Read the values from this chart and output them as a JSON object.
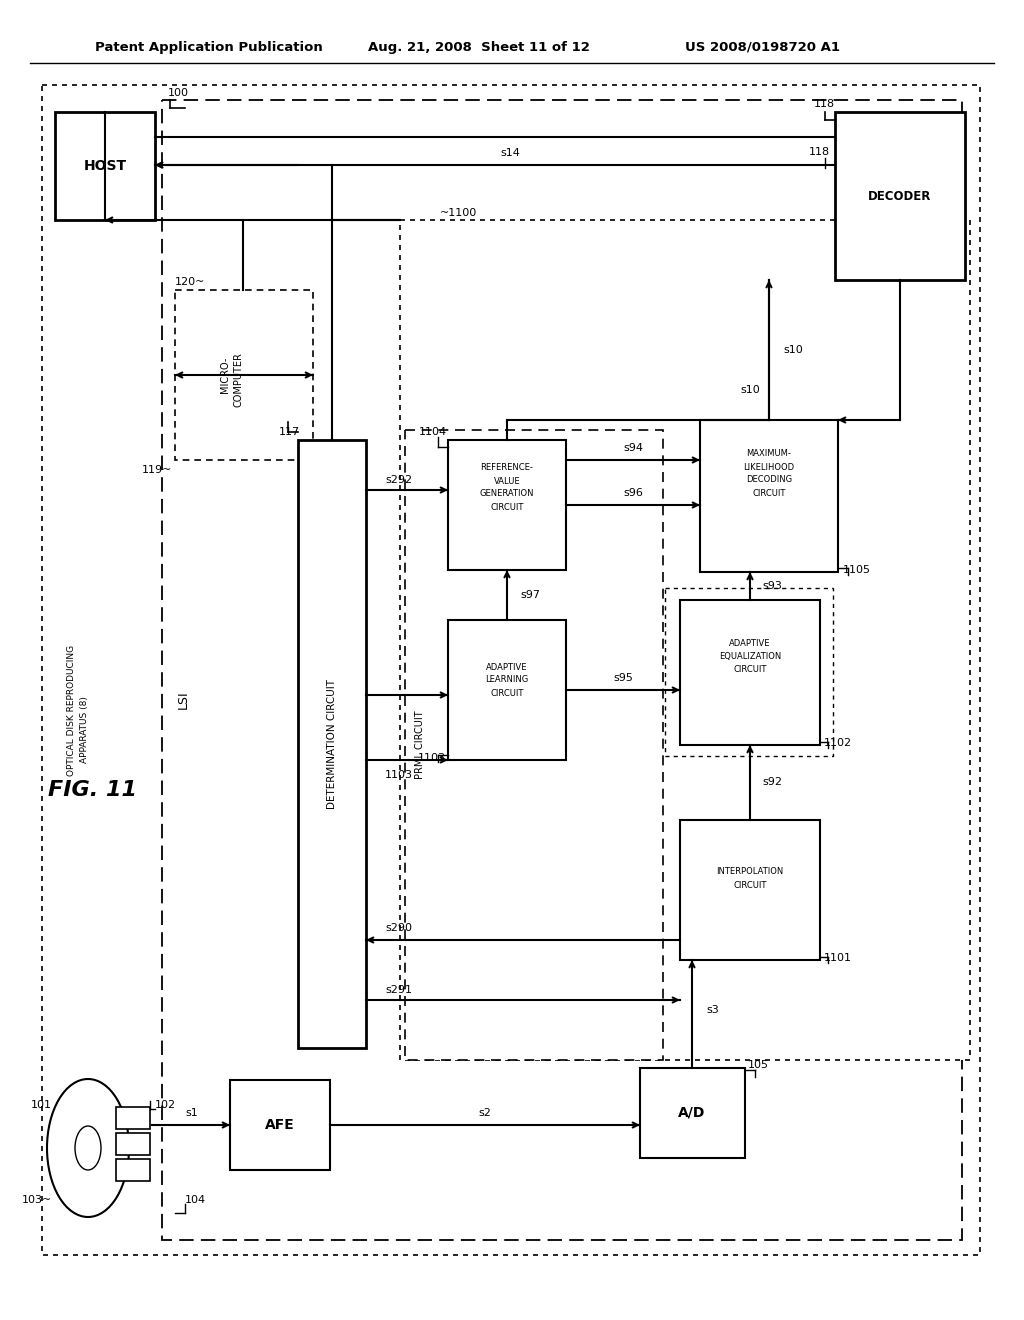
{
  "bg": "#ffffff",
  "header_left": "Patent Application Publication",
  "header_mid": "Aug. 21, 2008  Sheet 11 of 12",
  "header_right": "US 2008/0198720 A1"
}
